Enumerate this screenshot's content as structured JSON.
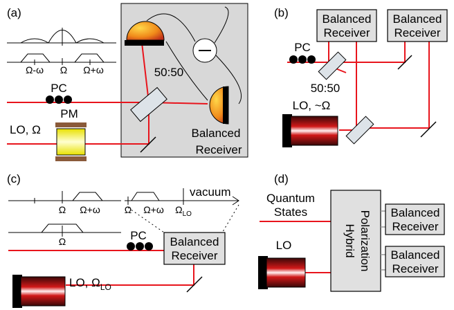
{
  "a": {
    "label": "(a)",
    "spectrum_labels": [
      "Ω-ω",
      "Ω",
      "Ω+ω"
    ],
    "pc": "PC",
    "splitter": "50:50",
    "pm": "PM",
    "lo": "LO, Ω",
    "receiver": [
      "Balanced",
      "Receiver"
    ]
  },
  "b": {
    "label": "(b)",
    "receivers": [
      [
        "Balanced",
        "Receiver"
      ],
      [
        "Balanced",
        "Receiver"
      ]
    ],
    "pc": "PC",
    "splitter": "50:50",
    "lo": "LO, ~Ω"
  },
  "c": {
    "label": "(c)",
    "spectrum_labels": [
      "Ω",
      "Ω+ω"
    ],
    "shifted_labels": [
      "Ω",
      "Ω+ω"
    ],
    "lo_freq": {
      "text": "Ω",
      "sub": "LO"
    },
    "vacuum": "vacuum",
    "input_label": "Ω",
    "pc": "PC",
    "receiver": [
      "Balanced",
      "Receiver"
    ],
    "lo": {
      "text": "LO, Ω",
      "sub": "LO"
    }
  },
  "d": {
    "label": "(d)",
    "input": [
      "Quantum",
      "States"
    ],
    "lo": "LO",
    "hybrid": [
      "Polarization",
      "Hybrid"
    ],
    "receivers": [
      [
        "Balanced",
        "Receiver"
      ],
      [
        "Balanced",
        "Receiver"
      ]
    ]
  }
}
